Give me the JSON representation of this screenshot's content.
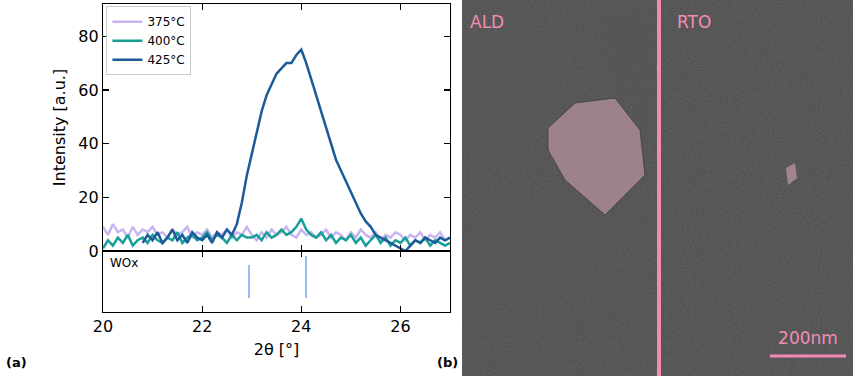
{
  "chart_data": [
    {
      "type": "line",
      "ylabel": "Intensity [a.u.]",
      "x": [
        20.0,
        20.1,
        20.2,
        20.3,
        20.4,
        20.5,
        20.6,
        20.7,
        20.8,
        20.9,
        21.0,
        21.1,
        21.2,
        21.3,
        21.4,
        21.5,
        21.6,
        21.7,
        21.8,
        21.9,
        22.0,
        22.1,
        22.2,
        22.3,
        22.4,
        22.5,
        22.6,
        22.7,
        22.8,
        22.9,
        23.0,
        23.1,
        23.2,
        23.3,
        23.4,
        23.5,
        23.6,
        23.7,
        23.8,
        23.9,
        24.0,
        24.1,
        24.2,
        24.3,
        24.4,
        24.5,
        24.6,
        24.7,
        24.8,
        24.9,
        25.0,
        25.1,
        25.2,
        25.3,
        25.4,
        25.5,
        25.6,
        25.7,
        25.8,
        25.9,
        26.0,
        26.1,
        26.2,
        26.3,
        26.4,
        26.5,
        26.6,
        26.7,
        26.8,
        26.9,
        27.0
      ],
      "series": [
        {
          "name": "375°C",
          "color": "#c8b4f0",
          "values": [
            9,
            6,
            10,
            7,
            8,
            5,
            9,
            6,
            8,
            7,
            9,
            6,
            7,
            5,
            8,
            6,
            7,
            9,
            5,
            7,
            6,
            8,
            5,
            7,
            6,
            8,
            5,
            7,
            6,
            9,
            6,
            4,
            7,
            5,
            8,
            6,
            7,
            9,
            6,
            5,
            8,
            6,
            7,
            5,
            6,
            8,
            5,
            7,
            6,
            4,
            7,
            5,
            8,
            6,
            5,
            7,
            4,
            6,
            5,
            7,
            6,
            4,
            6,
            5,
            7,
            4,
            6,
            5,
            7,
            4,
            5
          ]
        },
        {
          "name": "400°C",
          "color": "#17a097",
          "values": [
            1,
            4,
            2,
            5,
            3,
            6,
            2,
            4,
            5,
            3,
            6,
            4,
            3,
            5,
            4,
            7,
            3,
            5,
            6,
            4,
            5,
            7,
            4,
            6,
            5,
            3,
            6,
            4,
            6,
            5,
            5,
            6,
            4,
            7,
            5,
            6,
            8,
            6,
            7,
            9,
            12,
            8,
            6,
            5,
            7,
            4,
            6,
            3,
            5,
            4,
            6,
            3,
            5,
            2,
            4,
            6,
            3,
            5,
            2,
            4,
            3,
            5,
            2,
            4,
            3,
            5,
            2,
            4,
            3,
            2,
            3
          ]
        },
        {
          "name": "425°C",
          "color": "#1c5a99",
          "values": [
            null,
            null,
            null,
            null,
            null,
            null,
            null,
            null,
            3,
            6,
            4,
            7,
            3,
            5,
            8,
            4,
            6,
            3,
            7,
            5,
            4,
            6,
            3,
            7,
            5,
            8,
            6,
            10,
            18,
            28,
            36,
            44,
            52,
            58,
            62,
            66,
            68,
            70,
            70,
            73,
            75,
            70,
            64,
            58,
            52,
            46,
            40,
            34,
            30,
            26,
            22,
            18,
            14,
            11,
            9,
            6,
            5,
            4,
            3,
            2,
            1,
            0,
            2,
            4,
            3,
            5,
            4,
            3,
            5,
            4,
            5
          ]
        }
      ],
      "xlim": [
        20,
        27
      ],
      "xticks": [
        20,
        22,
        24,
        26
      ],
      "ylim": [
        0,
        92
      ],
      "yticks": [
        0,
        20,
        40,
        60,
        80
      ],
      "tick_labels": "y",
      "legend": "upper left",
      "grid": false
    },
    {
      "type": "bar",
      "panel": "(a)",
      "xlabel": "2θ [°]",
      "series": [
        {
          "name": "WOx",
          "color": "#90bff2",
          "x": [
            22.95,
            24.1
          ],
          "values": [
            0.71,
            0.9
          ]
        }
      ],
      "xlim": [
        20,
        27
      ],
      "xticks": [
        20,
        22,
        24,
        26
      ],
      "ylim": [
        -0.3,
        1
      ],
      "tick_labels": "x",
      "grid": false
    }
  ],
  "image_panel": {
    "panel": "(b)",
    "left_label": "ALD",
    "right_label": "RTO",
    "scale_bar": "200nm"
  }
}
